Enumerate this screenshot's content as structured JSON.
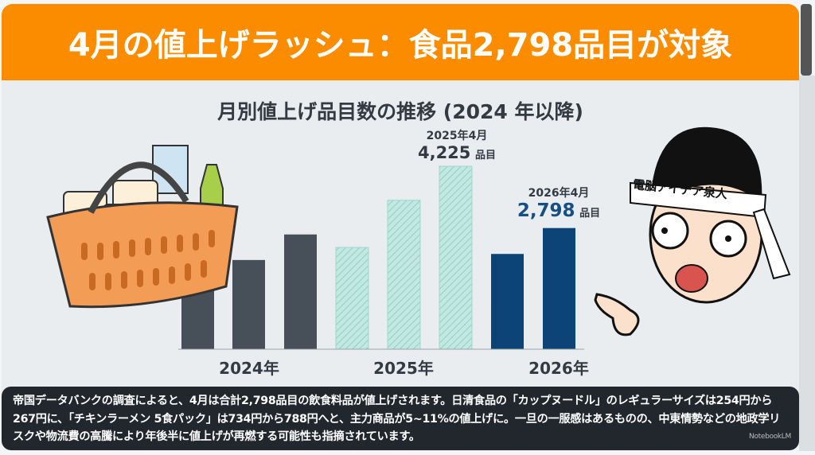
{
  "header": {
    "title": "4月の値上げラッシュ：食品2,798品目が対象"
  },
  "chart_data": {
    "type": "bar",
    "title": "月別値上げ品目数の推移 (2024 年以降)",
    "categories": [
      "2024-a",
      "2024-b",
      "2024-c",
      "2025-a",
      "2025-b",
      "2025-c",
      "2026-a",
      "2026-b"
    ],
    "groups": [
      {
        "label": "2024年",
        "indices": [
          0,
          1,
          2
        ],
        "color": "#474f59"
      },
      {
        "label": "2025年",
        "indices": [
          3,
          4,
          5
        ],
        "color": "#bfe6df",
        "pattern": "hatched"
      },
      {
        "label": "2026年",
        "indices": [
          6,
          7
        ],
        "color": "#0d4478"
      }
    ],
    "values": [
      1800,
      2060,
      2650,
      2350,
      3440,
      4225,
      2200,
      2798
    ],
    "xlabel": "",
    "ylabel": "",
    "ylim": [
      0,
      4600
    ],
    "grid": false,
    "annotations": [
      {
        "date": "2025年4月",
        "value": "4,225",
        "unit": "品目",
        "bar": 5
      },
      {
        "date": "2026年4月",
        "value": "2,798",
        "unit": "品目",
        "bar": 7
      }
    ]
  },
  "character": {
    "headband": "電脳アイデア泉人"
  },
  "caption": {
    "text": "帝国データバンクの調査によると、4月は合計2,798品目の飲食料品が値上げされます。日清食品の「カップヌードル」のレギュラーサイズは254円から267円に、「チキンラーメン 5食パック」は734円から788円へと、主力商品が5~11%の値上げに。一旦の一服感はあるものの、中東情勢などの地政学リスクや物流費の高騰により年後半に値上げが再燃する可能性も指摘されています。",
    "watermark": "NotebookLM"
  }
}
